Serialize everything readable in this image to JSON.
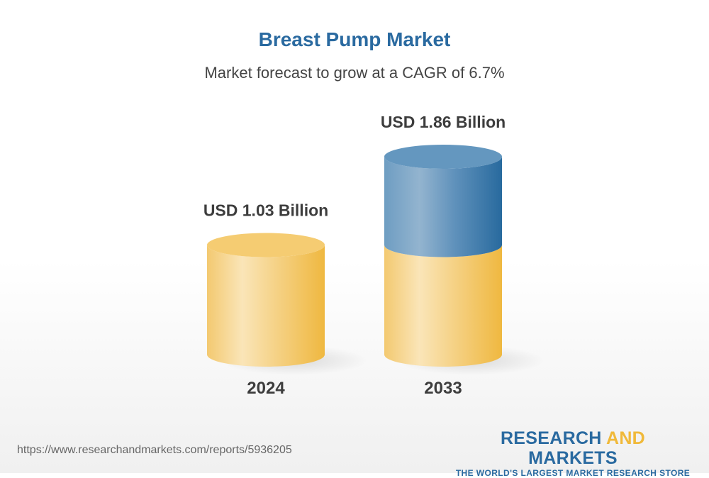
{
  "title": "Breast Pump Market",
  "subtitle": "Market forecast to grow at a CAGR of 6.7%",
  "chart_data": {
    "type": "bar",
    "style": "3d-cylinder",
    "categories": [
      "2024",
      "2033"
    ],
    "values": [
      1.03,
      1.86
    ],
    "unit": "USD Billion",
    "data_labels": [
      "USD 1.03 Billion",
      "USD 1.86 Billion"
    ],
    "colors": {
      "base": "#f2c45e",
      "growth": "#2a6aa0"
    },
    "grid": false
  },
  "footer": {
    "url": "https://www.researchandmarkets.com/reports/5936205",
    "logo_main_1": "RESEARCH ",
    "logo_main_2": "AND",
    "logo_main_3": " MARKETS",
    "logo_tagline": "THE WORLD'S LARGEST MARKET RESEARCH STORE"
  }
}
